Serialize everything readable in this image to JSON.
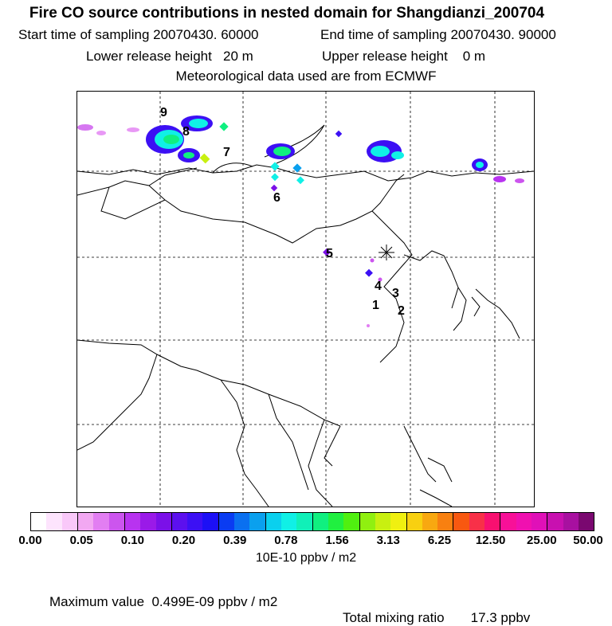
{
  "header": {
    "title": "Fire CO source contributions in nested domain for Shangdianzi_200704",
    "start_time": "Start time of sampling 20070430. 60000",
    "end_time": "End time of sampling 20070430. 90000",
    "lower_release": "Lower release height   20 m",
    "upper_release": "Upper release height    0 m",
    "met_data": "Meteorological data used are from ECMWF"
  },
  "map": {
    "station_marker": "station-asterisk",
    "region_labels": [
      "1",
      "2",
      "3",
      "4",
      "5",
      "6",
      "7",
      "8",
      "9"
    ]
  },
  "colorbar": {
    "ticks": [
      "0.00",
      "0.05",
      "0.10",
      "0.20",
      "0.39",
      "0.78",
      "1.56",
      "3.13",
      "6.25",
      "12.50",
      "25.00",
      "50.00"
    ],
    "units": "10E-10 ppbv / m2",
    "colors": [
      "#ffffff",
      "#fde4fd",
      "#f9c8f9",
      "#f2a8f2",
      "#e27ef2",
      "#cc55ee",
      "#b833f0",
      "#9a1ae8",
      "#7b10e8",
      "#5c10ee",
      "#3c10f4",
      "#1c10f6",
      "#0a3cf2",
      "#0a70f0",
      "#0aa0ee",
      "#0ad0ee",
      "#10f0e6",
      "#10f0b8",
      "#10f080",
      "#20f040",
      "#50f010",
      "#90f010",
      "#c8f010",
      "#f0f010",
      "#f8d010",
      "#f8a810",
      "#f88010",
      "#f85810",
      "#f83048",
      "#f81070",
      "#f81098",
      "#f010b0",
      "#e010b8",
      "#c810b0",
      "#a810a0",
      "#7a0870"
    ]
  },
  "footer": {
    "max_value": "Maximum value  0.499E-09 ppbv / m2",
    "total_mixing": "Total mixing ratio       17.3 ppbv"
  }
}
